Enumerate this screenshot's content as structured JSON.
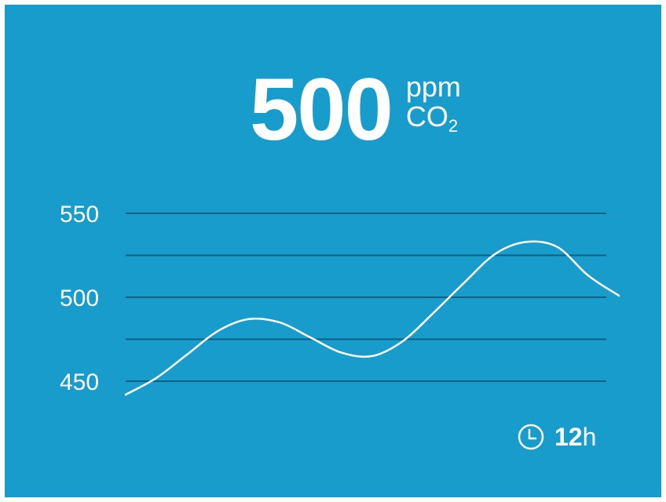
{
  "reading": {
    "value": "500",
    "unit": "ppm",
    "gas_main": "CO",
    "gas_sub": "2"
  },
  "time_range": {
    "number": "12",
    "unit": "h",
    "icon": "clock-icon"
  },
  "colors": {
    "background": "#179ccb",
    "text": "#ffffff",
    "gridline": "#0f5f84",
    "line": "#ffffff"
  },
  "chart_data": {
    "type": "line",
    "title": "",
    "xlabel": "",
    "ylabel": "",
    "ylim": [
      440,
      550
    ],
    "yticks": [
      450,
      500,
      550
    ],
    "ytick_labels": [
      "450",
      "500",
      "550"
    ],
    "gridlines": [
      450,
      475,
      500,
      525,
      550
    ],
    "grid": true,
    "series": [
      {
        "values": [
          442,
          452,
          466,
          480,
          487,
          485,
          476,
          467,
          465,
          474,
          491,
          509,
          526,
          533,
          530,
          513,
          501
        ]
      }
    ]
  }
}
